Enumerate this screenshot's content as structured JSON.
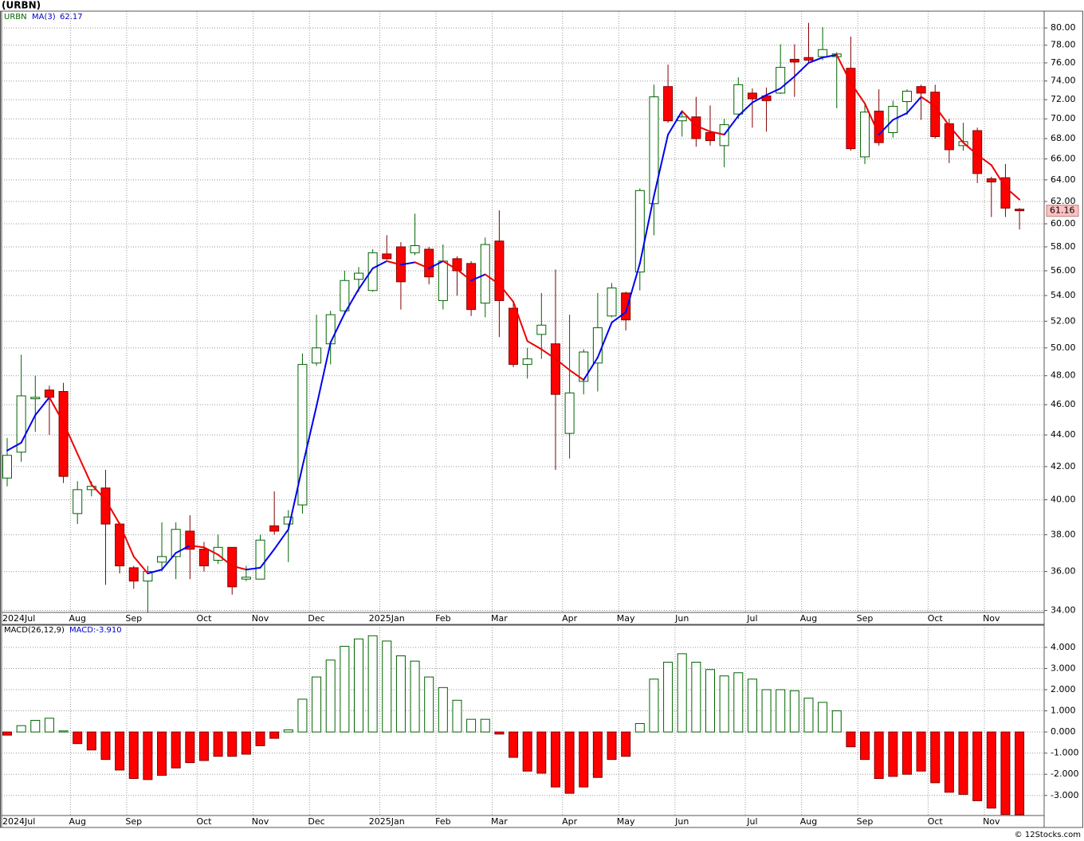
{
  "title": "(URBN)",
  "watermark": "© 12Stocks.com",
  "chart_data": [
    {
      "type": "candlestick",
      "name": "URBN",
      "log_scale": true,
      "grid": true,
      "categories": [
        "2024Jul",
        null,
        null,
        null,
        null,
        "Aug",
        null,
        null,
        null,
        "Sep",
        null,
        null,
        null,
        null,
        "Oct",
        null,
        null,
        null,
        "Nov",
        null,
        null,
        null,
        "Dec",
        null,
        null,
        null,
        null,
        "2025Jan",
        null,
        null,
        null,
        "Feb",
        null,
        null,
        null,
        "Mar",
        null,
        null,
        null,
        null,
        "Apr",
        null,
        null,
        null,
        "May",
        null,
        null,
        null,
        "Jun",
        null,
        null,
        null,
        null,
        "Jul",
        null,
        null,
        null,
        "Aug",
        null,
        null,
        null,
        "Sep",
        null,
        null,
        null,
        null,
        "Oct",
        null,
        null,
        null,
        "Nov",
        null,
        null
      ],
      "open": [
        41.3,
        42.9,
        46.4,
        47.0,
        46.9,
        39.2,
        40.6,
        40.7,
        38.6,
        36.2,
        35.5,
        36.5,
        36.8,
        38.2,
        37.2,
        36.6,
        37.3,
        35.6,
        35.6,
        38.5,
        38.6,
        39.7,
        48.9,
        50.3,
        52.8,
        55.3,
        54.4,
        57.4,
        58.0,
        57.5,
        57.8,
        53.6,
        57.0,
        56.6,
        53.4,
        58.5,
        53.0,
        48.8,
        51.0,
        50.3,
        44.1,
        47.6,
        48.9,
        52.4,
        54.2,
        55.9,
        61.8,
        73.4,
        69.8,
        70.2,
        68.6,
        67.3,
        70.5,
        72.7,
        72.4,
        72.7,
        76.4,
        76.6,
        76.7,
        76.7,
        75.4,
        66.2,
        70.8,
        68.6,
        71.8,
        73.4,
        72.8,
        69.5,
        67.3,
        68.8,
        64.1,
        64.2,
        61.3
      ],
      "high": [
        43.8,
        49.5,
        48.0,
        47.3,
        47.5,
        41.1,
        41.1,
        41.8,
        38.7,
        36.3,
        36.3,
        38.7,
        38.7,
        39.1,
        37.6,
        38.0,
        37.3,
        36.3,
        38.0,
        40.5,
        39.4,
        49.6,
        52.5,
        52.8,
        56.0,
        56.3,
        57.8,
        59.0,
        58.4,
        60.9,
        58.0,
        58.2,
        57.2,
        56.8,
        58.8,
        61.2,
        53.5,
        50.0,
        54.2,
        56.1,
        52.5,
        49.9,
        54.2,
        55.0,
        54.3,
        63.2,
        73.6,
        75.8,
        70.8,
        72.3,
        71.4,
        70.0,
        74.4,
        73.2,
        73.3,
        78.1,
        78.1,
        80.6,
        80.1,
        77.2,
        79.0,
        71.6,
        73.1,
        71.9,
        73.1,
        73.6,
        73.6,
        70.0,
        69.6,
        69.1,
        64.3,
        65.5,
        61.4
      ],
      "low": [
        40.8,
        42.3,
        44.2,
        44.0,
        41.0,
        38.6,
        40.2,
        35.3,
        35.9,
        35.1,
        33.9,
        36.0,
        35.6,
        35.6,
        36.0,
        36.4,
        34.8,
        35.5,
        35.6,
        38.0,
        36.5,
        39.2,
        48.7,
        48.8,
        52.5,
        54.3,
        54.3,
        56.9,
        52.9,
        57.3,
        54.9,
        52.9,
        54.0,
        52.4,
        52.3,
        50.8,
        48.6,
        47.8,
        49.2,
        41.8,
        42.5,
        46.7,
        46.9,
        52.3,
        51.3,
        54.4,
        59.0,
        69.6,
        68.2,
        67.2,
        67.3,
        65.2,
        70.0,
        69.1,
        68.7,
        72.6,
        72.3,
        75.9,
        76.3,
        71.1,
        66.8,
        65.5,
        67.3,
        68.1,
        70.4,
        69.9,
        68.0,
        65.6,
        66.8,
        63.7,
        60.6,
        60.6,
        59.5
      ],
      "close": [
        42.7,
        46.6,
        46.5,
        46.5,
        41.4,
        40.6,
        40.8,
        38.6,
        36.3,
        35.5,
        36.0,
        36.8,
        38.3,
        37.2,
        36.3,
        37.3,
        35.2,
        35.7,
        37.7,
        38.2,
        39.0,
        48.8,
        50.0,
        52.5,
        55.2,
        55.8,
        57.5,
        57.0,
        55.1,
        58.1,
        55.5,
        56.8,
        56.0,
        52.9,
        58.2,
        53.6,
        48.8,
        49.2,
        51.7,
        46.7,
        46.8,
        49.7,
        51.5,
        54.6,
        52.1,
        63.0,
        72.3,
        69.8,
        70.2,
        68.0,
        67.8,
        69.4,
        73.6,
        72.1,
        71.9,
        75.5,
        76.1,
        76.3,
        77.5,
        77.0,
        67.0,
        70.7,
        67.6,
        71.3,
        72.9,
        72.7,
        68.2,
        66.9,
        67.7,
        64.6,
        63.8,
        61.4,
        61.16
      ],
      "up_color": "#ffffff",
      "up_stroke": "#006400",
      "down_color": "#ff0000",
      "down_stroke": "#800000",
      "last_color": "#ffc0c0",
      "ma": {
        "name": "MA(3)",
        "up_color": "#0000ee",
        "down_color": "#ee0000",
        "values": [
          43.0,
          43.5,
          45.3,
          46.5,
          44.8,
          42.8,
          40.9,
          40.0,
          38.6,
          36.8,
          35.9,
          36.1,
          37.0,
          37.4,
          37.3,
          36.9,
          36.3,
          36.1,
          36.2,
          37.2,
          38.3,
          42.0,
          45.9,
          50.4,
          52.6,
          54.5,
          56.2,
          56.8,
          56.5,
          56.7,
          56.2,
          56.8,
          56.1,
          55.2,
          55.7,
          54.9,
          53.5,
          50.5,
          49.9,
          49.2,
          48.4,
          47.7,
          49.3,
          51.9,
          52.7,
          56.6,
          62.5,
          68.4,
          70.8,
          69.3,
          68.7,
          68.4,
          70.3,
          71.7,
          72.5,
          73.2,
          74.5,
          76.0,
          76.6,
          76.9,
          73.8,
          71.6,
          68.4,
          69.9,
          70.6,
          72.3,
          71.3,
          69.3,
          67.6,
          66.4,
          65.4,
          63.3,
          62.17
        ]
      },
      "ylim": [
        33.9,
        82.0
      ],
      "yticks": [
        {
          "value": 34,
          "label": "34.00"
        },
        {
          "value": 36,
          "label": "36.00"
        },
        {
          "value": 38,
          "label": "38.00"
        },
        {
          "value": 40,
          "label": "40.00"
        },
        {
          "value": 42,
          "label": "42.00"
        },
        {
          "value": 44,
          "label": "44.00"
        },
        {
          "value": 46,
          "label": "46.00"
        },
        {
          "value": 48,
          "label": "48.00"
        },
        {
          "value": 50,
          "label": "50.00"
        },
        {
          "value": 52,
          "label": "52.00"
        },
        {
          "value": 54,
          "label": "54.00"
        },
        {
          "value": 56,
          "label": "56.00"
        },
        {
          "value": 58,
          "label": "58.00"
        },
        {
          "value": 60,
          "label": "60.00"
        },
        {
          "value": 62,
          "label": "62.00"
        },
        {
          "value": 64,
          "label": "64.00"
        },
        {
          "value": 66,
          "label": "66.00"
        },
        {
          "value": 68,
          "label": "68.00"
        },
        {
          "value": 70,
          "label": "70.00"
        },
        {
          "value": 72,
          "label": "72.00"
        },
        {
          "value": 74,
          "label": "74.00"
        },
        {
          "value": 76,
          "label": "76.00"
        },
        {
          "value": 78,
          "label": "78.00"
        },
        {
          "value": 80,
          "label": "80.00"
        }
      ]
    },
    {
      "type": "bar",
      "legend": [
        "MACD(26,12,9)",
        "MACD:-3.910"
      ],
      "grid": true,
      "categories": [
        "2024Jul",
        null,
        null,
        null,
        null,
        "Aug",
        null,
        null,
        null,
        "Sep",
        null,
        null,
        null,
        null,
        "Oct",
        null,
        null,
        null,
        "Nov",
        null,
        null,
        null,
        "Dec",
        null,
        null,
        null,
        null,
        "2025Jan",
        null,
        null,
        null,
        "Feb",
        null,
        null,
        null,
        "Mar",
        null,
        null,
        null,
        null,
        "Apr",
        null,
        null,
        null,
        "May",
        null,
        null,
        null,
        "Jun",
        null,
        null,
        null,
        null,
        "Jul",
        null,
        null,
        null,
        "Aug",
        null,
        null,
        null,
        "Sep",
        null,
        null,
        null,
        null,
        "Oct",
        null,
        null,
        null,
        "Nov",
        null,
        null
      ],
      "values": [
        -0.15,
        0.3,
        0.55,
        0.65,
        0.05,
        -0.55,
        -0.85,
        -1.3,
        -1.8,
        -2.2,
        -2.25,
        -2.05,
        -1.7,
        -1.45,
        -1.35,
        -1.15,
        -1.15,
        -1.05,
        -0.65,
        -0.3,
        0.1,
        1.55,
        2.6,
        3.4,
        4.05,
        4.4,
        4.55,
        4.3,
        3.6,
        3.35,
        2.6,
        2.1,
        1.5,
        0.6,
        0.6,
        -0.1,
        -1.2,
        -1.85,
        -1.95,
        -2.6,
        -2.9,
        -2.6,
        -2.15,
        -1.3,
        -1.15,
        0.4,
        2.5,
        3.3,
        3.7,
        3.3,
        2.95,
        2.65,
        2.8,
        2.5,
        2.0,
        2.0,
        1.95,
        1.6,
        1.4,
        1.0,
        -0.7,
        -1.3,
        -2.2,
        -2.1,
        -2.0,
        -1.85,
        -2.4,
        -2.85,
        -2.95,
        -3.25,
        -3.6,
        -3.9,
        -3.91
      ],
      "pos_color": "#ffffff",
      "pos_stroke": "#006400",
      "neg_color": "#ff0000",
      "neg_stroke": "#800000",
      "ylim": [
        -3.95,
        5.05
      ],
      "yticks": [
        {
          "value": 4,
          "label": "4.000"
        },
        {
          "value": 3,
          "label": "3.000"
        },
        {
          "value": 2,
          "label": "2.000"
        },
        {
          "value": 1,
          "label": "1.000"
        },
        {
          "value": 0,
          "label": "0.000"
        },
        {
          "value": -1,
          "label": "-1.000"
        },
        {
          "value": -2,
          "label": "-2.000"
        },
        {
          "value": -3,
          "label": "-3.000"
        }
      ]
    }
  ]
}
